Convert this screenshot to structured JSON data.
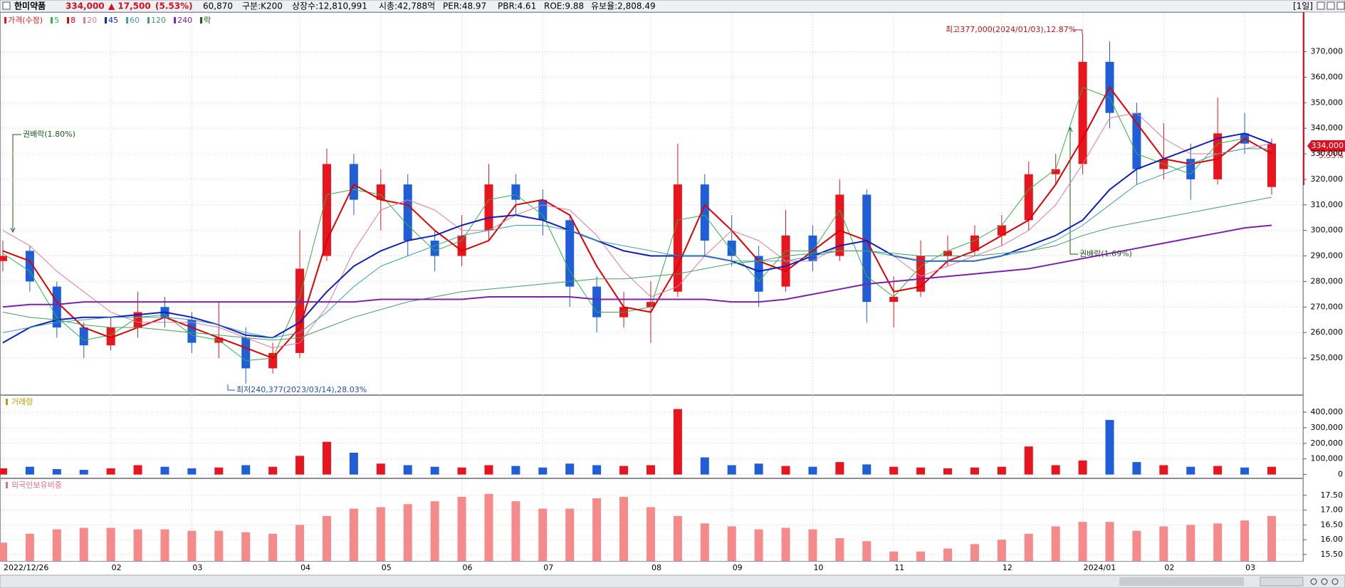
{
  "header": {
    "name": "한미약품",
    "price": "334,000",
    "change": "▲ 17,500",
    "change_pct": "(5.53%)",
    "volume": "60,870",
    "class": "구분:K200",
    "shares": "상장수:12,810,991",
    "market_cap": "시총:42,788억",
    "per": "PER:48.97",
    "pbr": "PBR:4.61",
    "roe": "ROE:9.88",
    "reserve": "유보율:2,808.49",
    "period": "[1일]"
  },
  "chart_data": [
    {
      "type": "candlestick",
      "price_label": "가격(수정)",
      "ex_rights_label": "락",
      "categories": [
        "2022/12/26",
        null,
        null,
        null,
        "02",
        null,
        null,
        "03",
        null,
        null,
        null,
        "04",
        null,
        null,
        "05",
        null,
        null,
        "06",
        null,
        null,
        "07",
        null,
        null,
        null,
        "08",
        null,
        null,
        "09",
        null,
        null,
        "10",
        null,
        null,
        "11",
        null,
        null,
        null,
        "12",
        null,
        null,
        "2024/01",
        null,
        null,
        "02",
        null,
        null,
        "03",
        null
      ],
      "candles": [
        [
          288000,
          296000,
          284000,
          290000
        ],
        [
          292000,
          294000,
          276000,
          280000
        ],
        [
          278000,
          280000,
          258000,
          262000
        ],
        [
          262000,
          264000,
          250000,
          255000
        ],
        [
          255000,
          266000,
          253000,
          262000
        ],
        [
          262000,
          276000,
          258000,
          268000
        ],
        [
          270000,
          274000,
          262000,
          266000
        ],
        [
          265000,
          268000,
          252000,
          256000
        ],
        [
          256000,
          272000,
          250000,
          258000
        ],
        [
          258000,
          262000,
          240000,
          246000
        ],
        [
          246000,
          256000,
          244000,
          252000
        ],
        [
          252000,
          300000,
          250000,
          285000
        ],
        [
          290000,
          332000,
          288000,
          326000
        ],
        [
          326000,
          330000,
          306000,
          312000
        ],
        [
          312000,
          324000,
          300000,
          318000
        ],
        [
          318000,
          322000,
          290000,
          296000
        ],
        [
          296000,
          300000,
          284000,
          290000
        ],
        [
          290000,
          306000,
          286000,
          298000
        ],
        [
          300000,
          326000,
          296000,
          318000
        ],
        [
          318000,
          322000,
          306000,
          312000
        ],
        [
          312000,
          316000,
          298000,
          304000
        ],
        [
          304000,
          306000,
          270000,
          278000
        ],
        [
          278000,
          282000,
          260000,
          266000
        ],
        [
          266000,
          276000,
          262000,
          270000
        ],
        [
          270000,
          280000,
          256000,
          272000
        ],
        [
          276000,
          334000,
          274000,
          318000
        ],
        [
          318000,
          322000,
          290000,
          296000
        ],
        [
          296000,
          306000,
          286000,
          290000
        ],
        [
          290000,
          294000,
          270000,
          276000
        ],
        [
          278000,
          308000,
          276000,
          298000
        ],
        [
          298000,
          302000,
          284000,
          288000
        ],
        [
          290000,
          320000,
          288000,
          314000
        ],
        [
          314000,
          316000,
          264000,
          272000
        ],
        [
          272000,
          282000,
          262000,
          274000
        ],
        [
          276000,
          296000,
          274000,
          290000
        ],
        [
          290000,
          298000,
          286000,
          292000
        ],
        [
          292000,
          302000,
          290000,
          298000
        ],
        [
          298000,
          306000,
          294000,
          302000
        ],
        [
          304000,
          327000,
          300000,
          322000
        ],
        [
          322000,
          330000,
          318000,
          324000
        ],
        [
          326000,
          377000,
          322000,
          366000
        ],
        [
          366000,
          374000,
          340000,
          346000
        ],
        [
          346000,
          350000,
          318000,
          324000
        ],
        [
          324000,
          342000,
          320000,
          328000
        ],
        [
          328000,
          334000,
          312000,
          320000
        ],
        [
          320000,
          352000,
          318000,
          338000
        ],
        [
          338000,
          346000,
          330000,
          334000
        ],
        [
          317000,
          336000,
          314000,
          334000
        ]
      ],
      "up_color": "#e8141e",
      "down_color": "#1f5ed6",
      "series": [
        {
          "name": "5",
          "color": "#2fb34a",
          "width": 1,
          "values": [
            291000,
            284000,
            266000,
            257000,
            259000,
            266000,
            267000,
            259000,
            257000,
            249000,
            250000,
            274000,
            314000,
            316000,
            314000,
            302000,
            292000,
            296000,
            312000,
            314000,
            306000,
            284000,
            268000,
            268000,
            270000,
            304000,
            306000,
            292000,
            280000,
            292000,
            292000,
            308000,
            282000,
            274000,
            286000,
            292000,
            296000,
            302000,
            316000,
            324000,
            356000,
            352000,
            330000,
            326000,
            322000,
            334000,
            336000,
            330000
          ]
        },
        {
          "name": "8",
          "color": "#e00000",
          "width": 2,
          "values": [
            292000,
            288000,
            272000,
            262000,
            258000,
            262000,
            266000,
            262000,
            258000,
            254000,
            250000,
            262000,
            296000,
            318000,
            312000,
            310000,
            300000,
            292000,
            296000,
            310000,
            312000,
            306000,
            286000,
            270000,
            268000,
            286000,
            310000,
            300000,
            288000,
            284000,
            292000,
            300000,
            296000,
            276000,
            278000,
            288000,
            292000,
            298000,
            304000,
            318000,
            336000,
            356000,
            342000,
            328000,
            326000,
            328000,
            336000,
            330000
          ]
        },
        {
          "name": "20",
          "color": "#e07aa0",
          "width": 1,
          "values": [
            300000,
            294000,
            284000,
            276000,
            268000,
            264000,
            264000,
            264000,
            262000,
            258000,
            254000,
            256000,
            270000,
            292000,
            308000,
            312000,
            308000,
            300000,
            300000,
            306000,
            310000,
            308000,
            298000,
            284000,
            274000,
            278000,
            290000,
            300000,
            296000,
            288000,
            288000,
            294000,
            296000,
            290000,
            282000,
            286000,
            290000,
            294000,
            300000,
            310000,
            326000,
            344000,
            346000,
            336000,
            330000,
            330000,
            332000,
            334000
          ]
        },
        {
          "name": "45",
          "color": "#1020c0",
          "width": 2,
          "values": [
            256000,
            262000,
            265000,
            266000,
            266000,
            267000,
            268000,
            266000,
            263000,
            259000,
            258000,
            264000,
            276000,
            286000,
            292000,
            296000,
            298000,
            302000,
            305000,
            306000,
            304000,
            300000,
            296000,
            292000,
            290000,
            290000,
            290000,
            288000,
            284000,
            286000,
            290000,
            294000,
            296000,
            290000,
            288000,
            288000,
            288000,
            290000,
            294000,
            298000,
            304000,
            316000,
            324000,
            328000,
            332000,
            336000,
            338000,
            334000
          ]
        },
        {
          "name": "60",
          "color": "#3aa0b0",
          "width": 1,
          "values": [
            260000,
            262000,
            264000,
            265000,
            266000,
            266000,
            266000,
            265000,
            263000,
            260000,
            258000,
            260000,
            268000,
            278000,
            286000,
            290000,
            294000,
            298000,
            300000,
            302000,
            302000,
            300000,
            296000,
            294000,
            292000,
            290000,
            290000,
            288000,
            288000,
            288000,
            290000,
            292000,
            292000,
            290000,
            288000,
            288000,
            288000,
            290000,
            292000,
            296000,
            302000,
            310000,
            318000,
            322000,
            326000,
            330000,
            332000,
            332000
          ]
        },
        {
          "name": "120",
          "color": "#40a060",
          "width": 1,
          "values": [
            268000,
            266000,
            265000,
            263000,
            262000,
            262000,
            261000,
            260000,
            259000,
            258000,
            257000,
            258000,
            262000,
            266000,
            269000,
            272000,
            274000,
            276000,
            277000,
            278000,
            279000,
            280000,
            281000,
            281000,
            282000,
            283000,
            285000,
            287000,
            288000,
            290000,
            291000,
            292000,
            292000,
            291000,
            290000,
            290000,
            290000,
            291000,
            292000,
            294000,
            298000,
            301000,
            303000,
            305000,
            307000,
            309000,
            311000,
            313000
          ]
        },
        {
          "name": "240",
          "color": "#8020b0",
          "width": 2,
          "values": [
            270000,
            271000,
            271000,
            272000,
            272000,
            272000,
            272000,
            272000,
            272000,
            272000,
            272000,
            272000,
            272000,
            272000,
            273000,
            273000,
            273000,
            273000,
            274000,
            274000,
            274000,
            274000,
            273000,
            273000,
            273000,
            273000,
            273000,
            272000,
            272000,
            273000,
            275000,
            277000,
            279000,
            280000,
            281000,
            282000,
            283000,
            284000,
            285000,
            287000,
            289000,
            291000,
            293000,
            295000,
            297000,
            299000,
            301000,
            302000
          ]
        }
      ],
      "annotations": [
        "최고377,000(2024/01/03),12.87%",
        "최저240,377(2023/03/14),28.03%",
        "권배락(1.80%)",
        "권배락(1.69%)"
      ],
      "last_label": {
        "price": "334,000",
        "change": "5.53%"
      },
      "ylim": [
        235800,
        385200
      ],
      "yticks": [
        {
          "value": 250000,
          "label": "250,000"
        },
        {
          "value": 260000,
          "label": "260,000"
        },
        {
          "value": 270000,
          "label": "270,000"
        },
        {
          "value": 280000,
          "label": "280,000"
        },
        {
          "value": 290000,
          "label": "290,000"
        },
        {
          "value": 300000,
          "label": "300,000"
        },
        {
          "value": 310000,
          "label": "310,000"
        },
        {
          "value": 320000,
          "label": "320,000"
        },
        {
          "value": 330000,
          "label": "330,000"
        },
        {
          "value": 340000,
          "label": "340,000"
        },
        {
          "value": 350000,
          "label": "350,000"
        },
        {
          "value": 360000,
          "label": "360,000"
        },
        {
          "value": 370000,
          "label": "370,000"
        }
      ],
      "grid": true
    },
    {
      "type": "bar",
      "title": "거래량",
      "values": [
        40000,
        50000,
        35000,
        30000,
        40000,
        60000,
        50000,
        40000,
        45000,
        60000,
        50000,
        120000,
        210000,
        140000,
        70000,
        60000,
        50000,
        45000,
        60000,
        55000,
        45000,
        70000,
        60000,
        55000,
        60000,
        420000,
        110000,
        60000,
        70000,
        55000,
        50000,
        80000,
        65000,
        50000,
        45000,
        40000,
        45000,
        50000,
        180000,
        60000,
        90000,
        350000,
        80000,
        60000,
        50000,
        55000,
        45000,
        50000
      ],
      "ylim": [
        -20000,
        505000
      ],
      "yticks": [
        0,
        {
          "value": 100000,
          "label": "100,000"
        },
        {
          "value": 200000,
          "label": "200,000"
        },
        {
          "value": 300000,
          "label": "300,000"
        },
        {
          "value": 400000,
          "label": "400,000"
        }
      ],
      "grid": true
    },
    {
      "type": "bar",
      "title": "외국인보유비중",
      "color": "#f48a8a",
      "values": [
        15.9,
        16.2,
        16.35,
        16.4,
        16.4,
        16.35,
        16.35,
        16.3,
        16.3,
        16.25,
        16.2,
        16.5,
        16.8,
        17.05,
        17.1,
        17.2,
        17.3,
        17.45,
        17.55,
        17.3,
        17.05,
        17.05,
        17.4,
        17.45,
        17.1,
        16.8,
        16.55,
        16.45,
        16.35,
        16.4,
        16.35,
        16.05,
        15.95,
        15.6,
        15.6,
        15.7,
        15.85,
        16.0,
        16.2,
        16.45,
        16.6,
        16.6,
        16.3,
        16.45,
        16.5,
        16.55,
        16.65,
        16.8
      ],
      "ylim": [
        15.28,
        18.05
      ],
      "yticks": [
        {
          "value": 15.5,
          "label": "15.50"
        },
        {
          "value": 16,
          "label": "16.00"
        },
        {
          "value": 16.5,
          "label": "16.50"
        },
        {
          "value": 17,
          "label": "17.00"
        },
        {
          "value": 17.5,
          "label": "17.50"
        }
      ],
      "grid": true
    }
  ]
}
